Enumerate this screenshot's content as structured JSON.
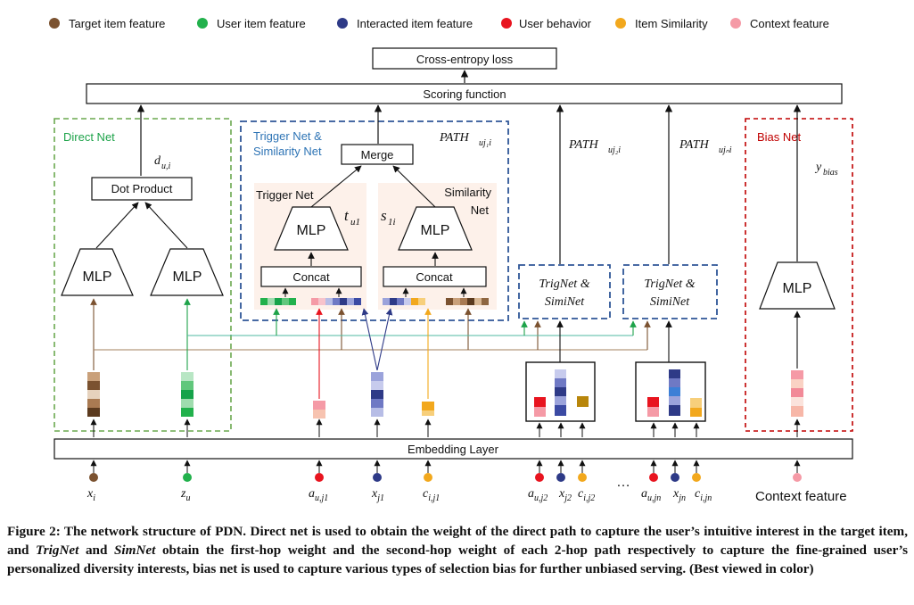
{
  "legend": [
    {
      "label": "Target item feature",
      "color": "#7b5230"
    },
    {
      "label": "User item feature",
      "color": "#22b14c"
    },
    {
      "label": "Interacted item feature",
      "color": "#2e3a87"
    },
    {
      "label": "User behavior",
      "color": "#e8141f"
    },
    {
      "label": "Item Similarity",
      "color": "#f2a81d"
    },
    {
      "label": "Context feature",
      "color": "#f59aa6"
    }
  ],
  "boxes": {
    "loss": "Cross-entropy loss",
    "scoring": "Scoring function",
    "embedding": "Embedding Layer",
    "dot_product": "Dot Product",
    "merge": "Merge",
    "concat": "Concat",
    "mlp": "MLP",
    "trignet_line1": "TrigNet &",
    "trignet_line2": "SimiNet"
  },
  "groups": {
    "direct": "Direct Net",
    "trigger_line1": "Trigger Net &",
    "trigger_line2": "Similarity Net",
    "trigger_sub": "Trigger Net",
    "similarity_line1": "Similarity",
    "similarity_line2": "Net",
    "bias": "Bias Net"
  },
  "math": {
    "d_main": "d",
    "d_sub": "u,i",
    "t_main": "t",
    "t_sub": "u1",
    "s_main": "s",
    "s_sub": "1i",
    "path1_main": "PATH",
    "path1_sub": "uj₁i",
    "path2_main": "PATH",
    "path2_sub": "uj₂i",
    "pathn_main": "PATH",
    "pathn_sub": "ujₙi",
    "y_main": "y",
    "y_sub": "bias"
  },
  "inputs": [
    {
      "main": "x",
      "sub": "i"
    },
    {
      "main": "z",
      "sub": "u"
    },
    {
      "main": "a",
      "sub": "u,j1"
    },
    {
      "main": "x",
      "sub": "j1"
    },
    {
      "main": "c",
      "sub": "i,j1"
    },
    {
      "main": "a",
      "sub": "u,j2"
    },
    {
      "main": "x",
      "sub": "j2"
    },
    {
      "main": "c",
      "sub": "i,j2"
    },
    {
      "main": "a",
      "sub": "u,jn"
    },
    {
      "main": "x",
      "sub": "jn"
    },
    {
      "main": "c",
      "sub": "i,jn"
    }
  ],
  "ellipsis": "…",
  "context_label": "Context feature",
  "caption": {
    "p1": "Figure 2: The network structure of PDN. Direct net is used to obtain the weight of the direct path to capture the user’s intuitive interest in the target item, and ",
    "e1": "TrigNet",
    "p2": " and ",
    "e2": "SimNet",
    "p3": " obtain the first-hop weight and the second-hop weight of each 2-hop path respectively to capture the fine-grained user’s personalized diversity interests, bias net is used to capture various types of selection bias for further unbiased serving. (Best viewed in color)"
  }
}
